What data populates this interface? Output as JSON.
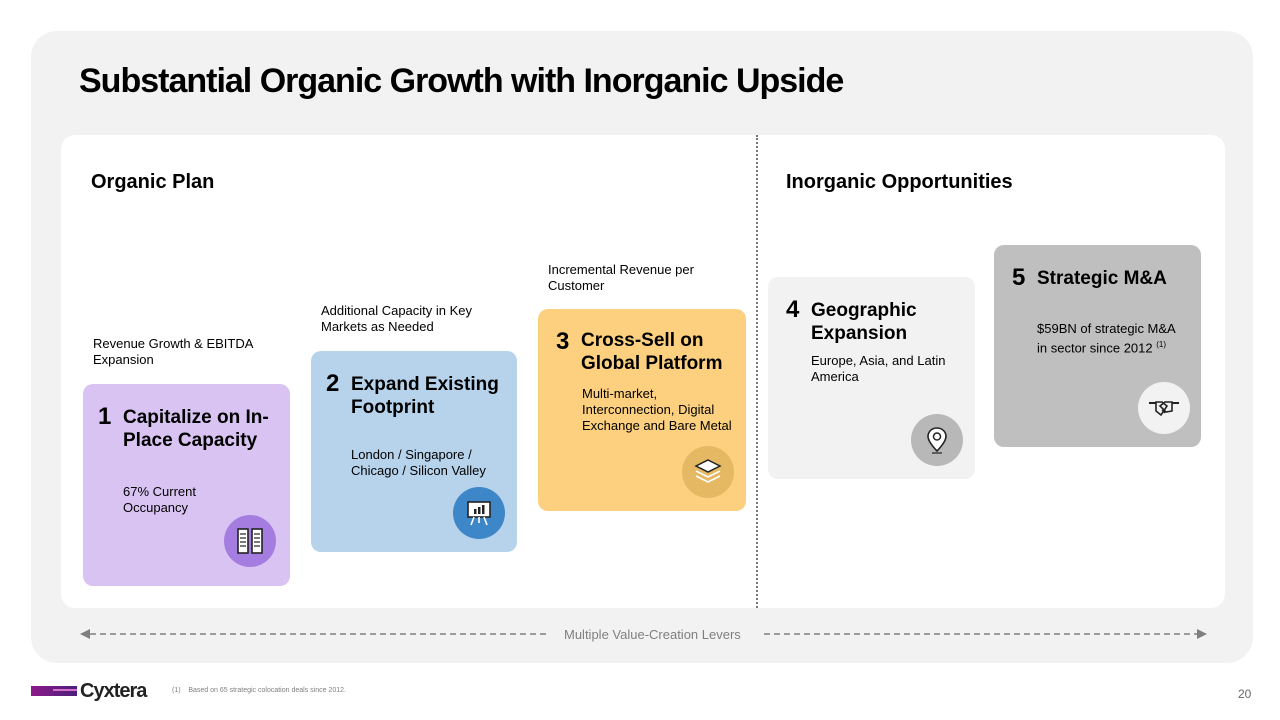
{
  "title": "Substantial Organic Growth with Inorganic Upside",
  "organic_title": "Organic Plan",
  "inorganic_title": "Inorganic Opportunities",
  "levers": [
    {
      "number": "1",
      "heading": "Capitalize on In-Place Capacity",
      "description": "67% Current Occupancy",
      "above_text": "Revenue Growth & EBITDA Expansion",
      "icon": "server-rack-icon",
      "color": "#d9c3f2",
      "icon_bg": "#a57de0"
    },
    {
      "number": "2",
      "heading": "Expand Existing Footprint",
      "description": "London / Singapore / Chicago / Silicon Valley",
      "above_text": "Additional Capacity in Key Markets as Needed",
      "icon": "presentation-chart-icon",
      "color": "#b7d3ec",
      "icon_bg": "#3d86c8"
    },
    {
      "number": "3",
      "heading": "Cross-Sell on Global Platform",
      "description": "Multi-market, Interconnection, Digital Exchange and Bare Metal",
      "above_text": "Incremental Revenue per Customer",
      "icon": "layers-icon",
      "color": "#fcd07e",
      "icon_bg": "#e5b964"
    },
    {
      "number": "4",
      "heading": "Geographic Expansion",
      "description": "Europe, Asia, and Latin America",
      "icon": "map-pin-icon",
      "color": "#f2f2f2",
      "icon_bg": "#b8b8b8"
    },
    {
      "number": "5",
      "heading": "Strategic M&A",
      "description": "$59BN of strategic M&A in sector since 2012",
      "footnote_ref": "(1)",
      "icon": "handshake-icon",
      "color": "#bfbfbf",
      "icon_bg": "#f2f2f2"
    }
  ],
  "arrow_label": "Multiple Value-Creation Levers",
  "logo_text": "Cyxtera",
  "footnote": "(1)    Based on 65 strategic colocation deals since 2012.",
  "page_number": "20"
}
